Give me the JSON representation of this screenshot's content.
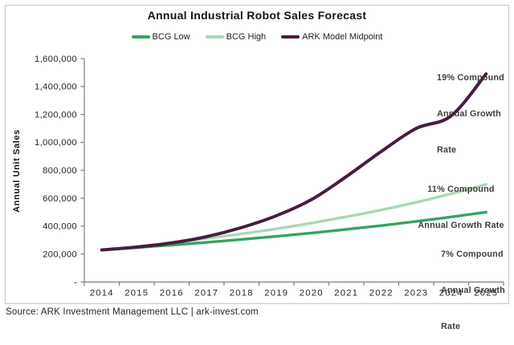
{
  "title": "Annual Industrial Robot Sales Forecast",
  "y_axis_title": "Annual Unit Sales",
  "source": "Source: ARK Investment Management LLC | ark-invest.com",
  "colors": {
    "bcg_low": "#36a361",
    "bcg_high": "#a9d8b6",
    "ark_midpoint": "#471d40",
    "axis": "#7f7f7f",
    "tick_label": "#262626",
    "figure_border": "#c6c6c6"
  },
  "legend": {
    "items": [
      {
        "label": "BCG Low",
        "color": "#36a361"
      },
      {
        "label": "BCG High",
        "color": "#a9d8b6"
      },
      {
        "label": "ARK Model Midpoint",
        "color": "#471d40"
      }
    ]
  },
  "annotations": {
    "ark": {
      "lines": [
        "19% Compound",
        "Annual Growth",
        "Rate"
      ]
    },
    "bcg_high": {
      "lines": [
        "11% Compound",
        "Annual Growth Rate"
      ]
    },
    "bcg_low": {
      "lines": [
        "7% Compound",
        "Annual Growth",
        "Rate"
      ]
    }
  },
  "chart_data": {
    "type": "line",
    "title": "Annual Industrial Robot Sales Forecast",
    "xlabel": "",
    "ylabel": "Annual Unit Sales",
    "x": [
      2014,
      2015,
      2016,
      2017,
      2018,
      2019,
      2020,
      2021,
      2022,
      2023,
      2024,
      2025
    ],
    "series": [
      {
        "name": "BCG Low",
        "cagr": "7% Compound Annual Growth Rate",
        "color": "#36a361",
        "values": [
          230000,
          247000,
          265000,
          284000,
          305000,
          327000,
          351000,
          377000,
          404000,
          434000,
          466000,
          500000
        ]
      },
      {
        "name": "BCG High",
        "cagr": "11% Compound Annual Growth Rate",
        "color": "#a9d8b6",
        "values": [
          230000,
          254000,
          282000,
          312000,
          345000,
          381000,
          422000,
          467000,
          516000,
          571000,
          632000,
          699000
        ]
      },
      {
        "name": "ARK Model Midpoint",
        "cagr": "19% Compound Annual Growth Rate",
        "color": "#471d40",
        "values": [
          230000,
          250000,
          280000,
          325000,
          390000,
          475000,
          590000,
          755000,
          935000,
          1100000,
          1190000,
          1490000
        ]
      }
    ],
    "ylim": [
      0,
      1600000
    ],
    "ytick_step": 200000,
    "ytick_labels": [
      "-",
      "200,000",
      "400,000",
      "600,000",
      "800,000",
      "1,000,000",
      "1,200,000",
      "1,400,000",
      "1,600,000"
    ],
    "grid": false,
    "legend_position": "top"
  }
}
